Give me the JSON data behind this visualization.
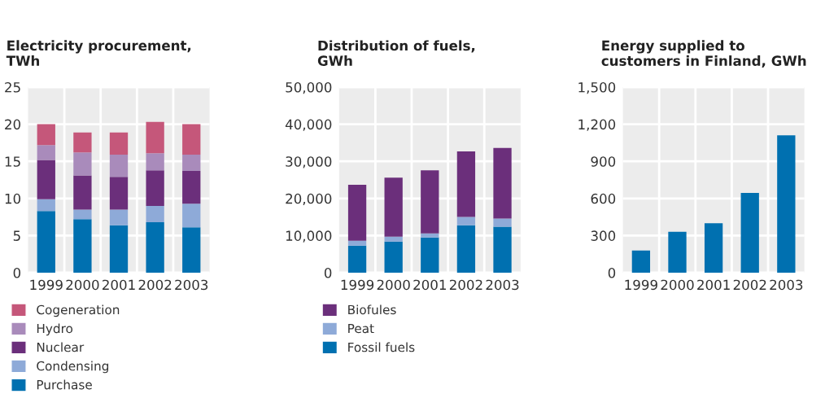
{
  "chart_data": [
    {
      "type": "bar",
      "stacked": true,
      "title": "Electricity procurement,\nTWh",
      "categories": [
        "1999",
        "2000",
        "2001",
        "2002",
        "2003"
      ],
      "ylim": [
        0,
        25
      ],
      "yticks": [
        0,
        5,
        10,
        15,
        20,
        25
      ],
      "grid": true,
      "legend": "bottom",
      "series": [
        {
          "name": "Purchase",
          "color": "#0070b0",
          "values": [
            8.3,
            7.2,
            6.4,
            6.8,
            6.1
          ]
        },
        {
          "name": "Condensing",
          "color": "#8eaad8",
          "values": [
            1.6,
            1.3,
            2.1,
            2.2,
            3.2
          ]
        },
        {
          "name": "Nuclear",
          "color": "#6b2f7b",
          "values": [
            5.3,
            4.6,
            4.4,
            4.8,
            4.4
          ]
        },
        {
          "name": "Hydro",
          "color": "#a98bbb",
          "values": [
            2.0,
            3.1,
            3.0,
            2.3,
            2.2
          ]
        },
        {
          "name": "Cogeneration",
          "color": "#c5577a",
          "values": [
            2.8,
            2.7,
            3.0,
            4.2,
            4.1
          ]
        }
      ]
    },
    {
      "type": "bar",
      "stacked": true,
      "title": "Distribution of fuels,\nGWh",
      "categories": [
        "1999",
        "2000",
        "2001",
        "2002",
        "2003"
      ],
      "ylim": [
        0,
        50000
      ],
      "yticks": [
        {
          "value": 0,
          "label": "0"
        },
        {
          "value": 10000,
          "label": "10,000"
        },
        {
          "value": 20000,
          "label": "20,000"
        },
        {
          "value": 30000,
          "label": "30,000"
        },
        {
          "value": 40000,
          "label": "40,000"
        },
        {
          "value": 50000,
          "label": "50,000"
        }
      ],
      "grid": true,
      "legend": "bottom",
      "series": [
        {
          "name": "Fossil fuels",
          "color": "#0070b0",
          "values": [
            7300,
            8400,
            9500,
            12800,
            12400
          ]
        },
        {
          "name": "Peat",
          "color": "#8eaad8",
          "values": [
            1300,
            1300,
            1100,
            2200,
            2200
          ]
        },
        {
          "name": "Biofules",
          "color": "#6b2f7b",
          "values": [
            15100,
            15900,
            17000,
            17700,
            19000
          ]
        }
      ]
    },
    {
      "type": "bar",
      "title": "Energy supplied to\ncustomers in Finland, GWh",
      "categories": [
        "1999",
        "2000",
        "2001",
        "2002",
        "2003"
      ],
      "ylim": [
        0,
        1500
      ],
      "yticks": [
        0,
        300,
        600,
        900,
        {
          "value": 1200,
          "label": "1,200"
        },
        {
          "value": 1500,
          "label": "1,500"
        }
      ],
      "grid": true,
      "series": [
        {
          "color": "#0070b0",
          "values": [
            180,
            330,
            400,
            645,
            1110
          ]
        }
      ]
    }
  ]
}
